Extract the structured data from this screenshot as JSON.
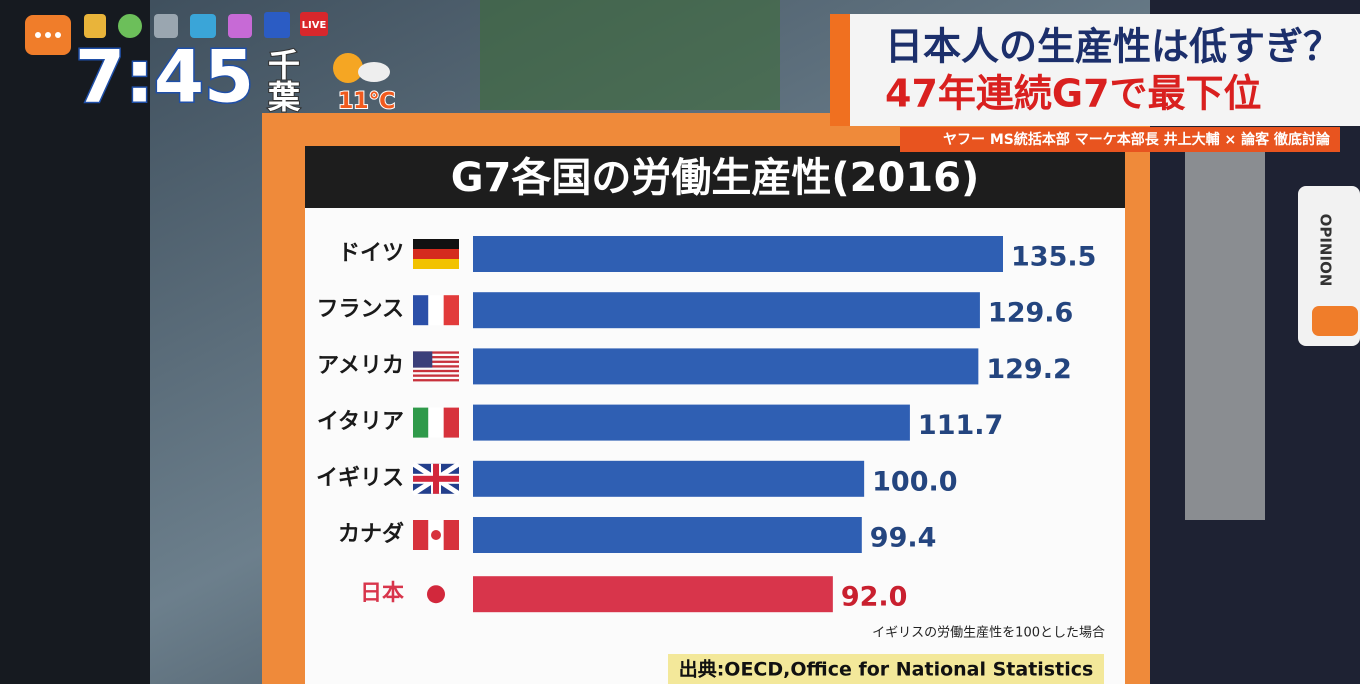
{
  "overlay": {
    "clock": "7:45",
    "area": "千葉",
    "temperature": "11℃",
    "live": "LIVE",
    "headline": "日本人の生産性は低すぎ？",
    "headline_sub": "47年連続G7で最下位",
    "caption": "ヤフー MS統括本部 マーケ本部長 井上大輔 × 論客 徹底討論",
    "tab": "OPINION"
  },
  "chart_data": {
    "type": "bar",
    "orientation": "horizontal",
    "title": "G7各国の労働生産性(2016)",
    "categories": [
      "ドイツ",
      "フランス",
      "アメリカ",
      "イタリア",
      "イギリス",
      "カナダ",
      "日本"
    ],
    "values": [
      135.5,
      129.6,
      129.2,
      111.7,
      100.0,
      99.4,
      92.0
    ],
    "value_labels": [
      "135.5",
      "129.6",
      "129.2",
      "111.7",
      "100.0",
      "99.4",
      "92.0"
    ],
    "colors": [
      "#2f5fb3",
      "#2f5fb3",
      "#2f5fb3",
      "#2f5fb3",
      "#2f5fb3",
      "#2f5fb3",
      "#d8354b"
    ],
    "note": "イギリスの労働生産性を100とした場合",
    "source": "出典:OECD,Office for National Statistics"
  }
}
